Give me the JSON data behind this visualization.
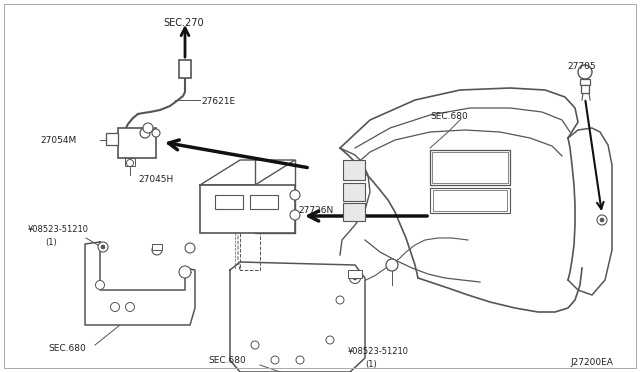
{
  "bg_color": "#ffffff",
  "lc": "#555555",
  "dc": "#111111",
  "tc": "#222222",
  "fig_width": 6.4,
  "fig_height": 3.72,
  "dpi": 100,
  "parts": {
    "SEC270_text": "SEC.270",
    "label_27621E": "27621E",
    "label_27054M": "27054M",
    "label_27045H": "27045H",
    "label_08523_1": "¥08523-51210",
    "label_08523_1b": "(1)",
    "label_SEC680_L": "SEC.680",
    "label_27726N": "27726N",
    "label_SEC680_B": "SEC.680",
    "label_08523_2": "¥08523-51210",
    "label_08523_2b": "(1)",
    "label_SEC680_D": "SEC.680",
    "label_27705": "27705",
    "label_J27200EA": "J27200EA"
  }
}
